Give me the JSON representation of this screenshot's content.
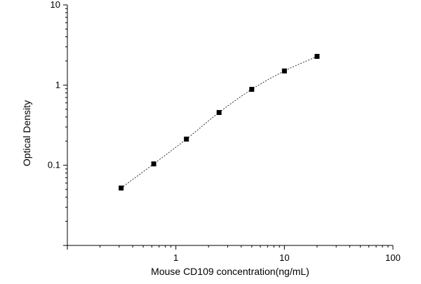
{
  "chart_data": {
    "type": "scatter",
    "xlabel": "Mouse CD109 concentration(ng/mL)",
    "ylabel": "Optical Density",
    "x_scale": "log",
    "y_scale": "log",
    "xlim": [
      0.1,
      100
    ],
    "ylim": [
      0.01,
      10
    ],
    "x_tick_labels": [
      "1",
      "10",
      "100"
    ],
    "y_tick_labels": [
      "0.1",
      "1",
      "10"
    ],
    "grid": false,
    "legend": "none",
    "series": [
      {
        "x": [
          0.313,
          0.625,
          1.25,
          2.5,
          5,
          10,
          20
        ],
        "y": [
          0.052,
          0.104,
          0.212,
          0.455,
          0.885,
          1.5,
          2.28
        ],
        "marker": "square",
        "fit_line": "dotted curve"
      }
    ]
  }
}
